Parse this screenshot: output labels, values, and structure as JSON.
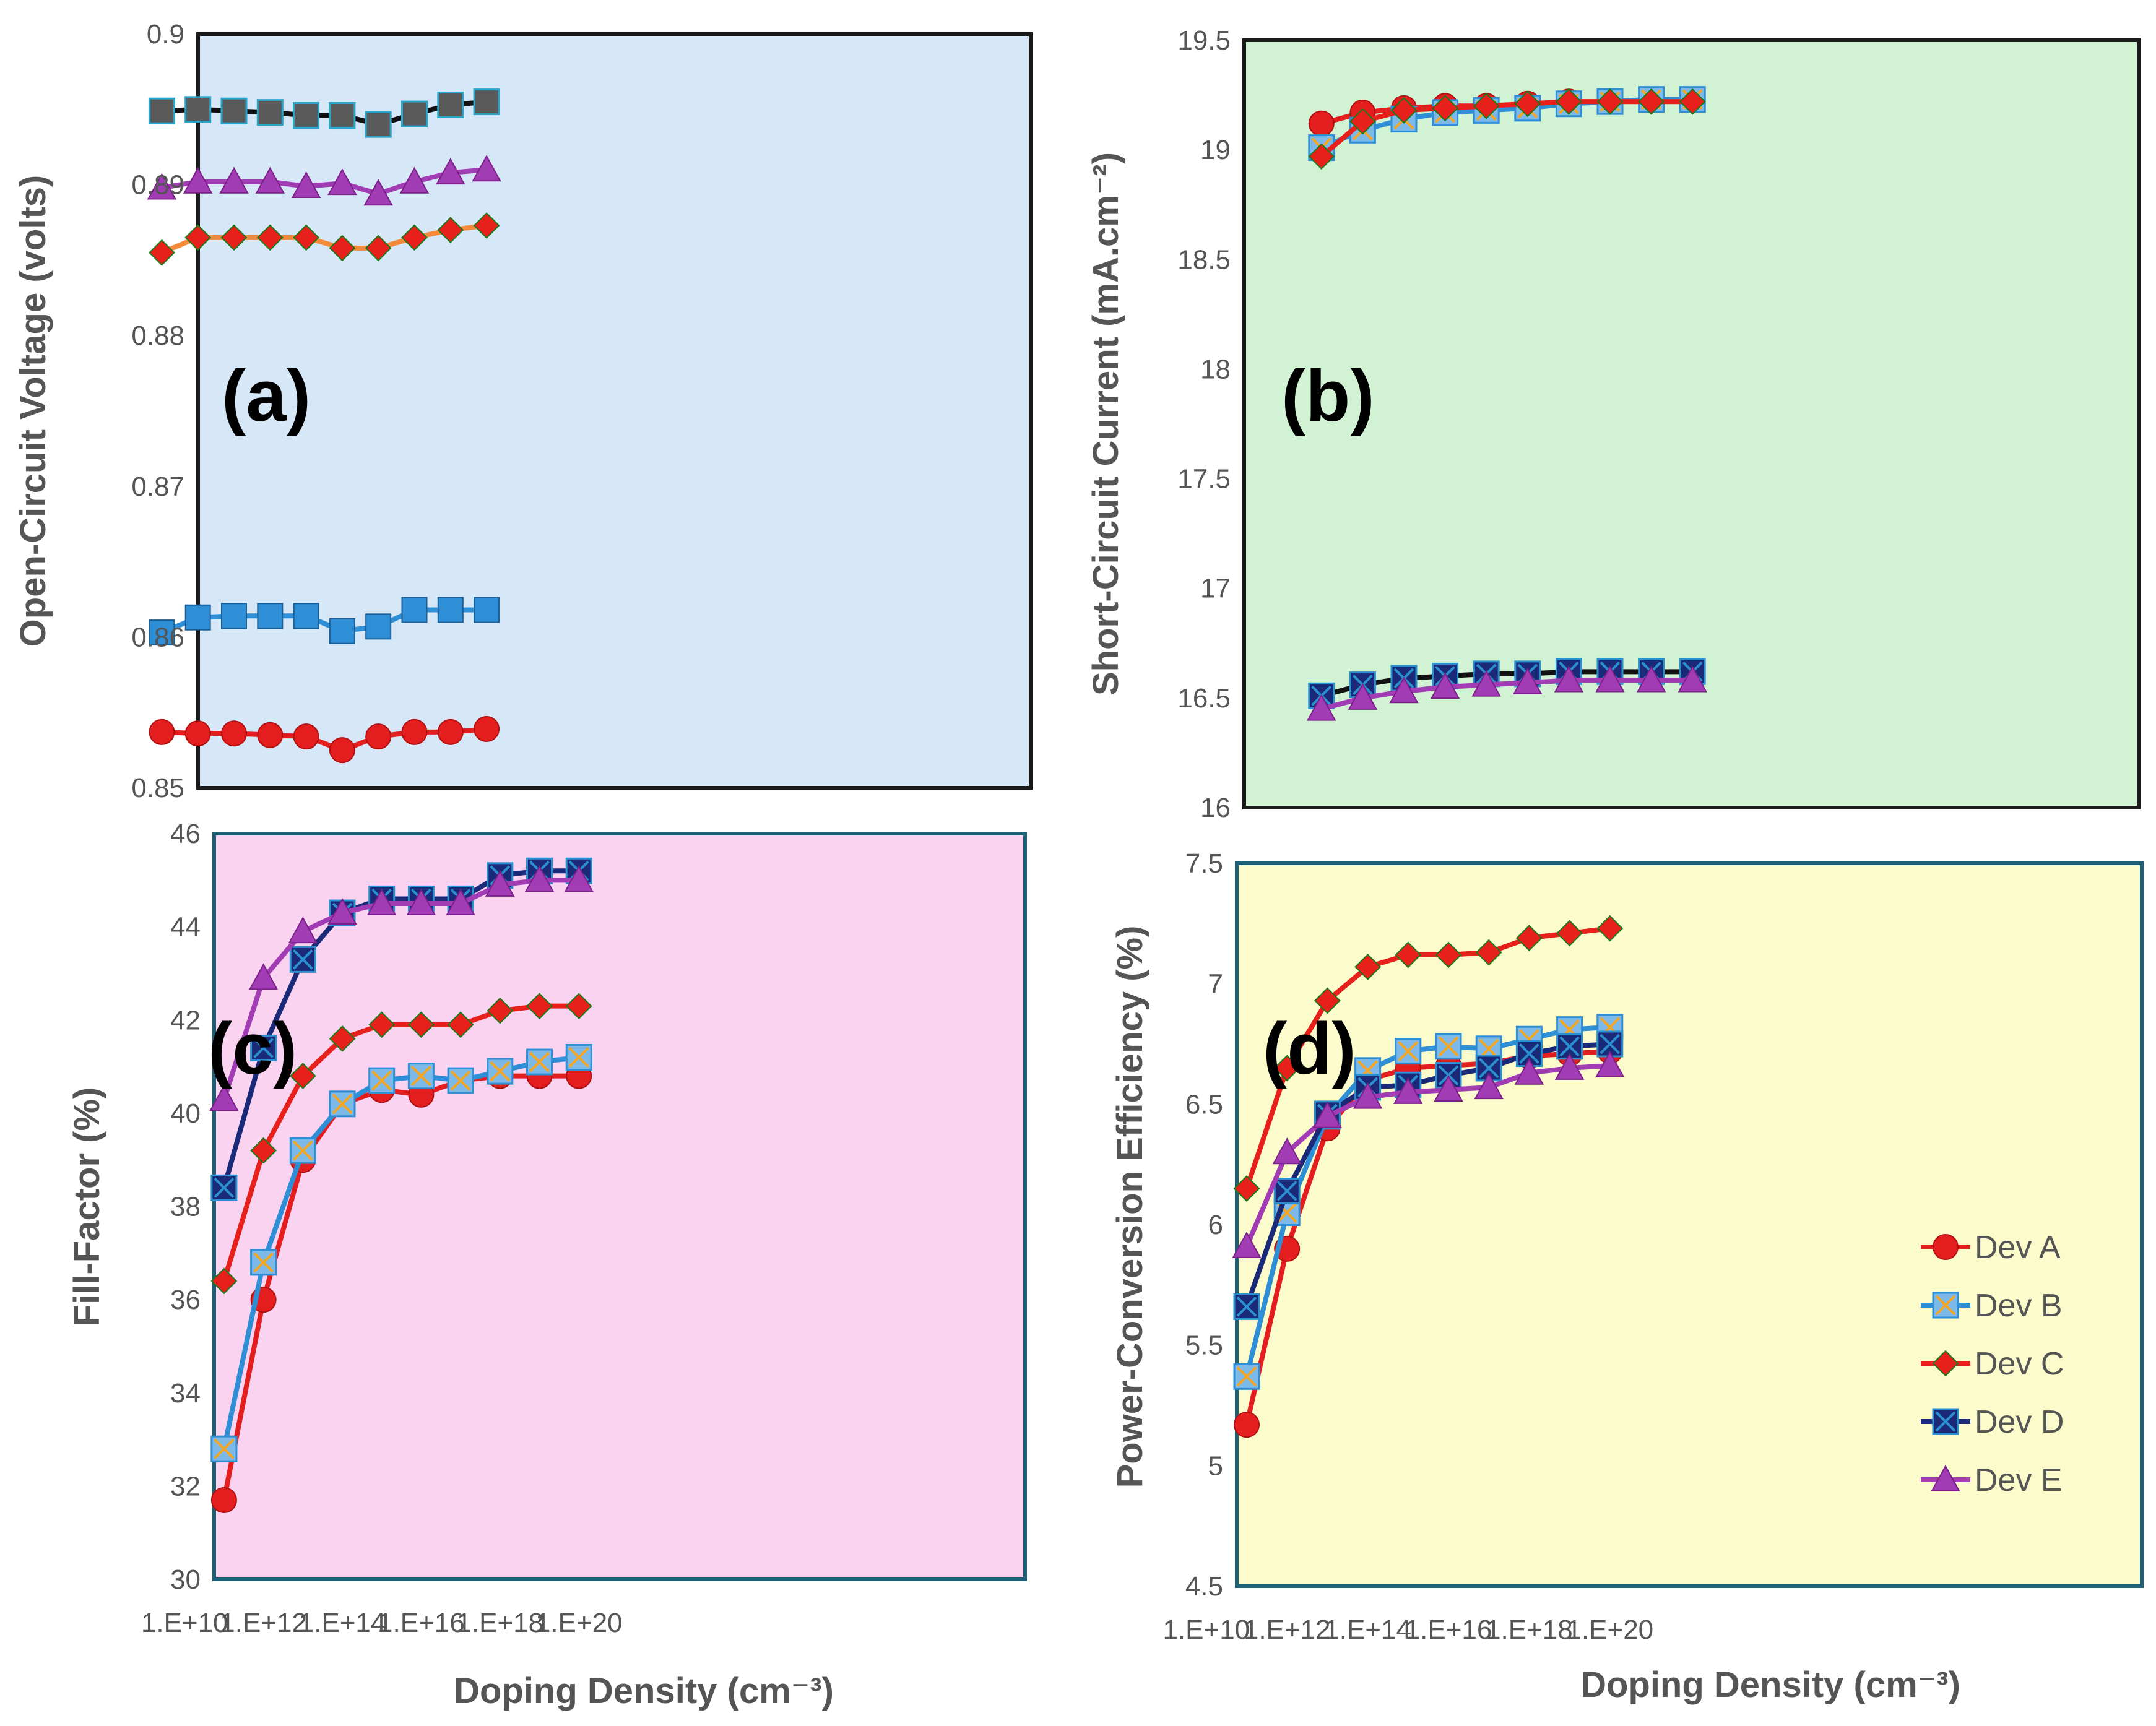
{
  "figure": {
    "colors": {
      "panel_a_bg": "#d6e8f8",
      "panel_b_bg": "#d2f2d4",
      "panel_c_bg": "#fad3f1",
      "panel_d_bg": "#fcfbcb",
      "frame": "#1a1a1a",
      "frame_alt": "#1d6075",
      "dev_a": "#e41e1e",
      "dev_b": "#2f8fd6",
      "dev_c": "#e8201c",
      "dev_d": "#1a2a78",
      "dev_e": "#a23cb5"
    }
  },
  "chart_data": [
    {
      "panel": "(a)",
      "type": "line",
      "title": "",
      "xlabel": "Doping Density (cm⁻³)",
      "ylabel": "Open-Circuit Voltage (volts)",
      "ylim": [
        0.85,
        0.9
      ],
      "yticks": [
        "0.85",
        "0.86",
        "0.87",
        "0.88",
        "0.89",
        "0.9"
      ],
      "x": [
        11,
        12,
        13,
        14,
        15,
        16,
        17,
        18,
        19,
        20
      ],
      "series": [
        {
          "name": "Dev A",
          "values": [
            0.8537,
            0.8536,
            0.8536,
            0.8535,
            0.8534,
            0.8525,
            0.8534,
            0.8537,
            0.8537,
            0.8539
          ]
        },
        {
          "name": "Dev B",
          "values": [
            0.8603,
            0.8613,
            0.8614,
            0.8614,
            0.8614,
            0.8604,
            0.8607,
            0.8618,
            0.8618,
            0.8618
          ]
        },
        {
          "name": "Dev C",
          "values": [
            0.8855,
            0.8865,
            0.8865,
            0.8865,
            0.8865,
            0.8858,
            0.8858,
            0.8865,
            0.887,
            0.8873
          ]
        },
        {
          "name": "Dev D",
          "values": [
            0.8949,
            0.895,
            0.8949,
            0.8948,
            0.8946,
            0.8946,
            0.894,
            0.8947,
            0.8953,
            0.8955
          ]
        },
        {
          "name": "Dev E",
          "values": [
            0.8898,
            0.8902,
            0.8902,
            0.8902,
            0.8899,
            0.8901,
            0.8894,
            0.8902,
            0.8908,
            0.891
          ]
        }
      ]
    },
    {
      "panel": "(b)",
      "type": "line",
      "title": "",
      "xlabel": "Doping Density (cm⁻³)",
      "ylabel": "Short-Circuit Current (mA.cm⁻²)",
      "ylim": [
        16,
        19.5
      ],
      "yticks": [
        "16",
        "16.5",
        "17",
        "17.5",
        "18",
        "18.5",
        "19",
        "19.5"
      ],
      "x": [
        11,
        12,
        13,
        14,
        15,
        16,
        17,
        18,
        19,
        20
      ],
      "series": [
        {
          "name": "Dev A",
          "values": [
            19.12,
            19.17,
            19.19,
            19.2,
            19.2,
            19.21,
            19.22,
            19.22,
            19.23,
            19.23
          ]
        },
        {
          "name": "Dev B",
          "values": [
            19.01,
            19.09,
            19.14,
            19.17,
            19.18,
            19.19,
            19.21,
            19.22,
            19.23,
            19.23
          ]
        },
        {
          "name": "Dev C",
          "values": [
            18.97,
            19.13,
            19.18,
            19.19,
            19.2,
            19.21,
            19.22,
            19.22,
            19.22,
            19.22
          ]
        },
        {
          "name": "Dev D",
          "values": [
            16.51,
            16.56,
            16.59,
            16.6,
            16.61,
            16.61,
            16.62,
            16.62,
            16.62,
            16.62
          ]
        },
        {
          "name": "Dev E",
          "values": [
            16.45,
            16.5,
            16.53,
            16.55,
            16.56,
            16.57,
            16.58,
            16.58,
            16.58,
            16.58
          ]
        }
      ]
    },
    {
      "panel": "(c)",
      "type": "line",
      "title": "",
      "xlabel": "Doping Density (cm⁻³)",
      "ylabel": "Fill-Factor (%)",
      "ylim": [
        30,
        46
      ],
      "yticks": [
        "30",
        "32",
        "34",
        "36",
        "38",
        "40",
        "42",
        "44",
        "46"
      ],
      "xticks": [
        "1.E+10",
        "1.E+12",
        "1.E+14",
        "1.E+16",
        "1.E+18",
        "1.E+20"
      ],
      "x": [
        11,
        12,
        13,
        14,
        15,
        16,
        17,
        18,
        19,
        20
      ],
      "series": [
        {
          "name": "Dev A",
          "values": [
            31.7,
            36.0,
            39.0,
            40.2,
            40.5,
            40.4,
            40.7,
            40.8,
            40.8,
            40.8
          ]
        },
        {
          "name": "Dev B",
          "values": [
            32.8,
            36.8,
            39.2,
            40.2,
            40.7,
            40.8,
            40.7,
            40.9,
            41.1,
            41.2
          ]
        },
        {
          "name": "Dev C",
          "values": [
            36.4,
            39.2,
            40.8,
            41.6,
            41.9,
            41.9,
            41.9,
            42.2,
            42.3,
            42.3
          ]
        },
        {
          "name": "Dev D",
          "values": [
            38.4,
            41.4,
            43.3,
            44.3,
            44.6,
            44.6,
            44.6,
            45.1,
            45.2,
            45.2
          ]
        },
        {
          "name": "Dev E",
          "values": [
            40.3,
            42.9,
            43.9,
            44.3,
            44.5,
            44.5,
            44.5,
            44.9,
            45.0,
            45.0
          ]
        }
      ]
    },
    {
      "panel": "(d)",
      "type": "line",
      "title": "",
      "xlabel": "Doping Density (cm⁻³)",
      "ylabel": "Power-Conversion Efficiency (%)",
      "ylim": [
        4.5,
        7.5
      ],
      "yticks": [
        "4.5",
        "5",
        "5.5",
        "6",
        "6.5",
        "7",
        "7.5"
      ],
      "xticks": [
        "1.E+10",
        "1.E+12",
        "1.E+14",
        "1.E+16",
        "1.E+18",
        "1.E+20"
      ],
      "x": [
        11,
        12,
        13,
        14,
        15,
        16,
        17,
        18,
        19,
        20
      ],
      "legend": "bottom-right",
      "series": [
        {
          "name": "Dev A",
          "values": [
            5.17,
            5.9,
            6.4,
            6.6,
            6.65,
            6.66,
            6.67,
            6.7,
            6.71,
            6.72
          ]
        },
        {
          "name": "Dev B",
          "values": [
            5.37,
            6.05,
            6.45,
            6.64,
            6.72,
            6.74,
            6.73,
            6.77,
            6.81,
            6.82
          ]
        },
        {
          "name": "Dev C",
          "values": [
            6.15,
            6.65,
            6.93,
            7.07,
            7.12,
            7.12,
            7.13,
            7.19,
            7.21,
            7.23
          ]
        },
        {
          "name": "Dev D",
          "values": [
            5.66,
            6.14,
            6.46,
            6.57,
            6.58,
            6.62,
            6.65,
            6.71,
            6.74,
            6.75
          ]
        },
        {
          "name": "Dev E",
          "values": [
            5.91,
            6.3,
            6.45,
            6.53,
            6.55,
            6.56,
            6.57,
            6.63,
            6.65,
            6.66
          ]
        }
      ]
    }
  ]
}
